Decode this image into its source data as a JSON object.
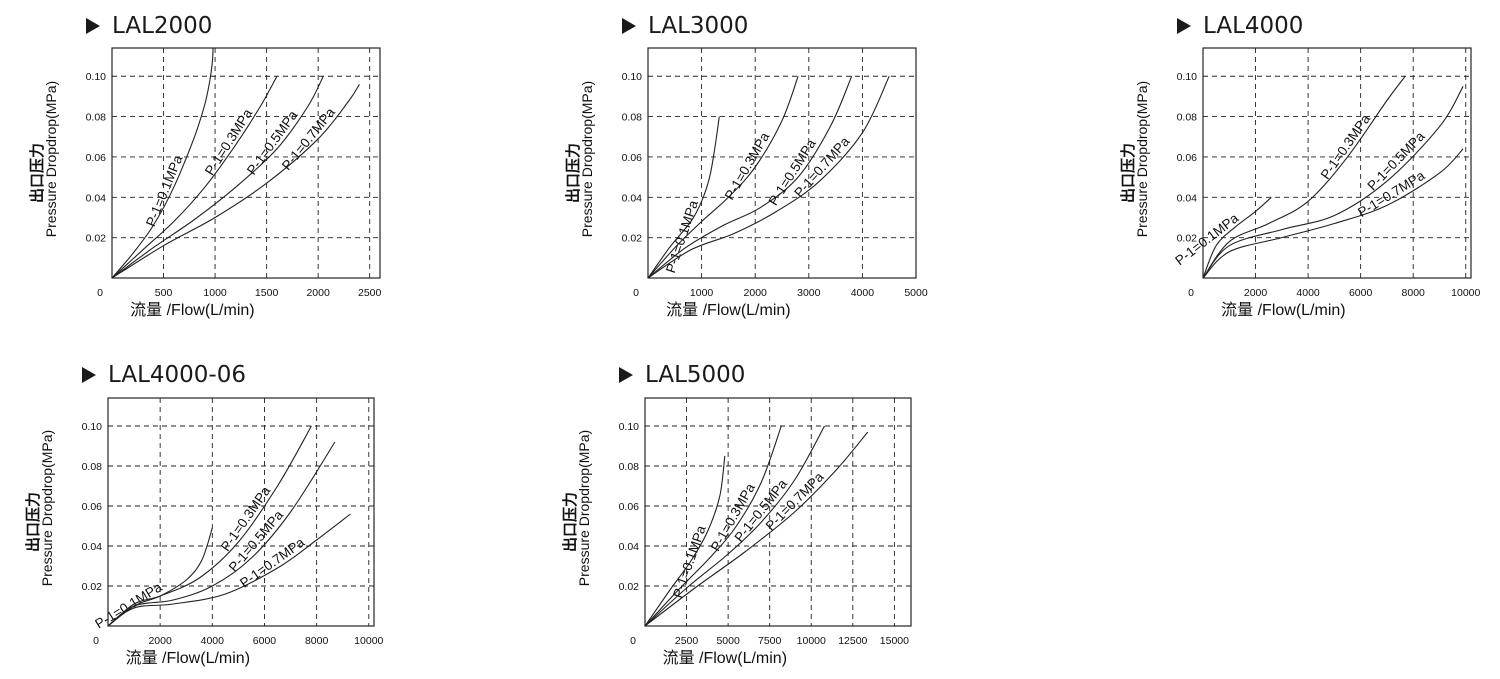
{
  "chart_data": [
    {
      "id": "lal2000",
      "type": "line",
      "title": "LAL2000",
      "xlabel": "流量 /Flow(L/min)",
      "ylabel_cn": "出口压力",
      "ylabel": "Pressure Dropdrop(MPa)",
      "xlim": [
        0,
        2600
      ],
      "ylim": [
        0,
        0.114
      ],
      "xticks": [
        500,
        1000,
        1500,
        2000,
        2500
      ],
      "xtick_labels": [
        "500",
        "1000",
        "1500",
        "2000",
        "2500"
      ],
      "yticks": [
        0.02,
        0.04,
        0.06,
        0.08,
        0.1
      ],
      "ytick_labels": [
        "0.02",
        "0.04",
        "0.06",
        "0.08",
        "0.10"
      ],
      "origin_label": "0",
      "grid": true,
      "series": [
        {
          "name": "P-1=0.1MPa",
          "x": [
            0,
            200,
            400,
            600,
            800,
            900,
            950,
            975,
            980
          ],
          "y": [
            0,
            0.012,
            0.026,
            0.045,
            0.07,
            0.086,
            0.098,
            0.108,
            0.114
          ],
          "label_at": 0.45,
          "label_dy": -3
        },
        {
          "name": "P-1=0.3MPa",
          "x": [
            0,
            300,
            600,
            900,
            1200,
            1450,
            1600
          ],
          "y": [
            0,
            0.014,
            0.028,
            0.045,
            0.066,
            0.086,
            0.1
          ],
          "label_at": 0.8,
          "label_dy": -3
        },
        {
          "name": "P-1=0.5MPa",
          "x": [
            0,
            400,
            800,
            1200,
            1600,
            1900,
            2050
          ],
          "y": [
            0,
            0.015,
            0.029,
            0.045,
            0.064,
            0.085,
            0.1
          ],
          "label_at": 0.8,
          "label_dy": -3
        },
        {
          "name": "P-1=0.7MPa",
          "x": [
            0,
            500,
            1000,
            1500,
            2000,
            2300,
            2400
          ],
          "y": [
            0,
            0.016,
            0.03,
            0.047,
            0.069,
            0.088,
            0.096
          ],
          "label_at": 0.78,
          "label_dy": -3
        }
      ]
    },
    {
      "id": "lal3000",
      "type": "line",
      "title": "LAL3000",
      "xlabel": "流量 /Flow(L/min)",
      "ylabel_cn": "出口压力",
      "ylabel": "Pressure Dropdrop(MPa)",
      "xlim": [
        0,
        5000
      ],
      "ylim": [
        0,
        0.114
      ],
      "xticks": [
        1000,
        2000,
        3000,
        4000,
        5000
      ],
      "xtick_labels": [
        "1000",
        "2000",
        "3000",
        "4000",
        "5000"
      ],
      "yticks": [
        0.02,
        0.04,
        0.06,
        0.08,
        0.1
      ],
      "ytick_labels": [
        "0.02",
        "0.04",
        "0.06",
        "0.08",
        "0.10"
      ],
      "origin_label": "0",
      "grid": true,
      "series": [
        {
          "name": "P-1=0.1MPa",
          "x": [
            0,
            400,
            800,
            1000,
            1150,
            1250,
            1330
          ],
          "y": [
            0,
            0.015,
            0.028,
            0.038,
            0.05,
            0.065,
            0.08
          ],
          "label_at": 0.5,
          "label_dy": -3
        },
        {
          "name": "P-1=0.3MPa",
          "x": [
            0,
            500,
            1000,
            1500,
            2000,
            2500,
            2800
          ],
          "y": [
            0,
            0.015,
            0.028,
            0.04,
            0.055,
            0.078,
            0.1
          ],
          "label_at": 0.78,
          "label_dy": -3
        },
        {
          "name": "P-1=0.5MPa",
          "x": [
            0,
            700,
            1400,
            2100,
            2800,
            3400,
            3800
          ],
          "y": [
            0,
            0.015,
            0.026,
            0.035,
            0.05,
            0.075,
            0.1
          ],
          "label_at": 0.78,
          "label_dy": -3
        },
        {
          "name": "P-1=0.7MPa",
          "x": [
            0,
            800,
            1600,
            2400,
            3200,
            4000,
            4500
          ],
          "y": [
            0,
            0.014,
            0.022,
            0.033,
            0.048,
            0.072,
            0.1
          ],
          "label_at": 0.8,
          "label_dy": -3
        }
      ]
    },
    {
      "id": "lal4000",
      "type": "line",
      "title": "LAL4000",
      "xlabel": "流量 /Flow(L/min)",
      "ylabel_cn": "出口压力",
      "ylabel": "Pressure Dropdrop(MPa)",
      "xlim": [
        0,
        10200
      ],
      "ylim": [
        0,
        0.114
      ],
      "xticks": [
        2000,
        4000,
        6000,
        8000,
        10000
      ],
      "xtick_labels": [
        "2000",
        "4000",
        "6000",
        "8000",
        "10000"
      ],
      "yticks": [
        0.02,
        0.04,
        0.06,
        0.08,
        0.1
      ],
      "ytick_labels": [
        "0.02",
        "0.04",
        "0.06",
        "0.08",
        "0.10"
      ],
      "origin_label": "0",
      "grid": true,
      "series": [
        {
          "name": "P-1=0.1MPa",
          "x": [
            0,
            500,
            1200,
            2000,
            2600
          ],
          "y": [
            0,
            0.016,
            0.025,
            0.033,
            0.04
          ],
          "label_at": 0.6,
          "label_dy": -3
        },
        {
          "name": "P-1=0.3MPa",
          "x": [
            0,
            1000,
            2500,
            4000,
            5500,
            7000,
            7700
          ],
          "y": [
            0,
            0.018,
            0.027,
            0.038,
            0.06,
            0.088,
            0.1
          ],
          "label_at": 0.78,
          "label_dy": -3
        },
        {
          "name": "P-1=0.5MPa",
          "x": [
            0,
            1000,
            3000,
            5000,
            7000,
            9000,
            9900
          ],
          "y": [
            0,
            0.016,
            0.024,
            0.031,
            0.048,
            0.075,
            0.095
          ],
          "label_at": 0.8,
          "label_dy": -3
        },
        {
          "name": "P-1=0.7MPa",
          "x": [
            0,
            1000,
            3000,
            5000,
            7000,
            9000,
            9900
          ],
          "y": [
            0,
            0.013,
            0.02,
            0.027,
            0.036,
            0.052,
            0.064
          ],
          "label_at": 0.8,
          "label_dy": -3
        }
      ]
    },
    {
      "id": "lal4000-06",
      "type": "line",
      "title": "LAL4000-06",
      "xlabel": "流量 /Flow(L/min)",
      "ylabel_cn": "出口压力",
      "ylabel": "Pressure Dropdrop(MPa)",
      "xlim": [
        0,
        10200
      ],
      "ylim": [
        0,
        0.114
      ],
      "xticks": [
        2000,
        4000,
        6000,
        8000,
        10000
      ],
      "xtick_labels": [
        "2000",
        "4000",
        "6000",
        "8000",
        "10000"
      ],
      "yticks": [
        0.02,
        0.04,
        0.06,
        0.08,
        0.1
      ],
      "ytick_labels": [
        "0.02",
        "0.04",
        "0.06",
        "0.08",
        "0.10"
      ],
      "origin_label": "0",
      "grid": true,
      "series": [
        {
          "name": "P-1=0.1MPa",
          "x": [
            0,
            1000,
            2000,
            3000,
            3600,
            4000
          ],
          "y": [
            0,
            0.01,
            0.015,
            0.023,
            0.033,
            0.049
          ],
          "label_at": 0.45,
          "label_dy": -4
        },
        {
          "name": "P-1=0.3MPa",
          "x": [
            0,
            1000,
            2000,
            3500,
            5000,
            6500,
            7800
          ],
          "y": [
            0,
            0.011,
            0.015,
            0.024,
            0.042,
            0.07,
            0.1
          ],
          "label_at": 0.82,
          "label_dy": -3
        },
        {
          "name": "P-1=0.5MPa",
          "x": [
            0,
            1000,
            2500,
            4000,
            5500,
            7000,
            8700
          ],
          "y": [
            0,
            0.01,
            0.013,
            0.02,
            0.034,
            0.057,
            0.092
          ],
          "label_at": 0.82,
          "label_dy": -3
        },
        {
          "name": "P-1=0.7MPa",
          "x": [
            0,
            1000,
            2500,
            4500,
            6500,
            8000,
            9300
          ],
          "y": [
            0,
            0.009,
            0.011,
            0.016,
            0.029,
            0.043,
            0.056
          ],
          "label_at": 0.8,
          "label_dy": -3
        }
      ]
    },
    {
      "id": "lal5000",
      "type": "line",
      "title": "LAL5000",
      "xlabel": "流量 /Flow(L/min)",
      "ylabel_cn": "出口压力",
      "ylabel": "Pressure Dropdrop(MPa)",
      "xlim": [
        0,
        16000
      ],
      "ylim": [
        0,
        0.114
      ],
      "xticks": [
        2500,
        5000,
        7500,
        10000,
        12500,
        15000
      ],
      "xtick_labels": [
        "2500",
        "5000",
        "7500",
        "10000",
        "12500",
        "15000"
      ],
      "yticks": [
        0.02,
        0.04,
        0.06,
        0.08,
        0.1
      ],
      "ytick_labels": [
        "0.02",
        "0.04",
        "0.06",
        "0.08",
        "0.10"
      ],
      "origin_label": "0",
      "grid": true,
      "series": [
        {
          "name": "P-1=0.1MPa",
          "x": [
            0,
            1500,
            2800,
            3800,
            4500,
            4800
          ],
          "y": [
            0,
            0.018,
            0.033,
            0.048,
            0.065,
            0.085
          ],
          "label_at": 0.62,
          "label_dy": -3
        },
        {
          "name": "P-1=0.3MPa",
          "x": [
            0,
            2000,
            4000,
            5500,
            7000,
            8200
          ],
          "y": [
            0,
            0.018,
            0.035,
            0.05,
            0.072,
            0.1
          ],
          "label_at": 0.78,
          "label_dy": -3
        },
        {
          "name": "P-1=0.5MPa",
          "x": [
            0,
            2500,
            5000,
            7000,
            9000,
            10800
          ],
          "y": [
            0,
            0.019,
            0.036,
            0.052,
            0.073,
            0.1
          ],
          "label_at": 0.78,
          "label_dy": -3
        },
        {
          "name": "P-1=0.7MPa",
          "x": [
            0,
            3000,
            6000,
            9000,
            11500,
            13400
          ],
          "y": [
            0,
            0.019,
            0.037,
            0.057,
            0.078,
            0.097
          ],
          "label_at": 0.76,
          "label_dy": -3
        }
      ]
    }
  ]
}
